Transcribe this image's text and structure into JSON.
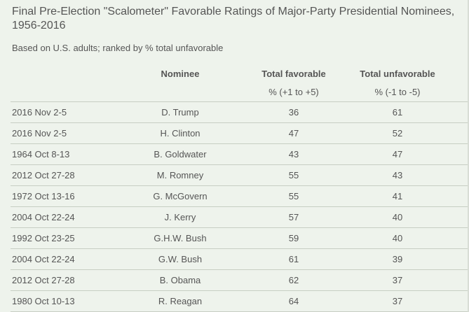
{
  "title": "Final Pre-Election \"Scalometer\" Favorable Ratings of Major-Party Presidential Nominees, 1956-2016",
  "subtitle": "Based on U.S. adults; ranked by % total unfavorable",
  "columns": {
    "nominee": "Nominee",
    "favorable": "Total favorable",
    "unfavorable": "Total unfavorable",
    "favorable_units": "% (+1 to +5)",
    "unfavorable_units": "% (-1 to -5)"
  },
  "chart_data": {
    "type": "table",
    "title": "Final Pre-Election \"Scalometer\" Favorable Ratings of Major-Party Presidential Nominees, 1956-2016",
    "subtitle": "Based on U.S. adults; ranked by % total unfavorable",
    "headers": [
      "",
      "Nominee",
      "Total favorable",
      "Total unfavorable"
    ],
    "units": [
      "",
      "",
      "% (+1 to +5)",
      "% (-1 to -5)"
    ],
    "rows": [
      {
        "date": "2016 Nov 2-5",
        "nominee": "D. Trump",
        "favorable": 36,
        "unfavorable": 61
      },
      {
        "date": "2016 Nov 2-5",
        "nominee": "H. Clinton",
        "favorable": 47,
        "unfavorable": 52
      },
      {
        "date": "1964 Oct 8-13",
        "nominee": "B. Goldwater",
        "favorable": 43,
        "unfavorable": 47
      },
      {
        "date": "2012 Oct 27-28",
        "nominee": "M. Romney",
        "favorable": 55,
        "unfavorable": 43
      },
      {
        "date": "1972 Oct 13-16",
        "nominee": "G. McGovern",
        "favorable": 55,
        "unfavorable": 41
      },
      {
        "date": "2004 Oct 22-24",
        "nominee": "J. Kerry",
        "favorable": 57,
        "unfavorable": 40
      },
      {
        "date": "1992 Oct 23-25",
        "nominee": "G.H.W. Bush",
        "favorable": 59,
        "unfavorable": 40
      },
      {
        "date": "2004 Oct 22-24",
        "nominee": "G.W. Bush",
        "favorable": 61,
        "unfavorable": 39
      },
      {
        "date": "2012 Oct 27-28",
        "nominee": "B. Obama",
        "favorable": 62,
        "unfavorable": 37
      },
      {
        "date": "1980 Oct 10-13",
        "nominee": "R. Reagan",
        "favorable": 64,
        "unfavorable": 37
      }
    ]
  }
}
